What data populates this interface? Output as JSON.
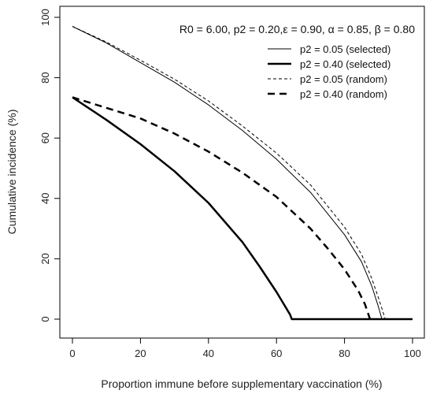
{
  "chart_data": {
    "type": "line",
    "annotation": "R0 = 6.00, p2 = 0.20,ε = 0.90, α = 0.85, β = 0.80",
    "xlabel": "Proportion immune before supplementary vaccination (%)",
    "ylabel": "Cumulative incidence (%)",
    "xlim": [
      0,
      100
    ],
    "ylim": [
      0,
      100
    ],
    "xticks": [
      0,
      20,
      40,
      60,
      80,
      100
    ],
    "yticks": [
      0,
      20,
      40,
      60,
      80,
      100
    ],
    "grid": false,
    "legend_position": "top-right",
    "series": [
      {
        "name": "p2 = 0.05 (selected)",
        "style": "solid-thin",
        "x": [
          0,
          10,
          20,
          30,
          40,
          50,
          60,
          70,
          80,
          85,
          88,
          90,
          91,
          100
        ],
        "y": [
          97,
          91.5,
          85,
          78.5,
          71,
          62.5,
          53,
          42,
          28,
          19,
          11,
          4,
          0,
          0
        ]
      },
      {
        "name": "p2 = 0.40 (selected)",
        "style": "solid-thick",
        "x": [
          0,
          10,
          20,
          30,
          40,
          50,
          55,
          60,
          64,
          64.5,
          100
        ],
        "y": [
          73.5,
          66,
          58,
          49,
          38.5,
          25.5,
          17.5,
          9,
          1.5,
          0,
          0
        ]
      },
      {
        "name": "p2 = 0.05 (random)",
        "style": "dashed-thin",
        "x": [
          0,
          10,
          20,
          30,
          40,
          50,
          60,
          70,
          80,
          85,
          88,
          90,
          92,
          100
        ],
        "y": [
          97,
          91.8,
          85.8,
          79.5,
          72.3,
          64,
          55,
          44.5,
          30.5,
          21.5,
          13.5,
          7,
          0,
          0
        ]
      },
      {
        "name": "p2 = 0.40 (random)",
        "style": "dashed-thick",
        "x": [
          0,
          10,
          20,
          30,
          40,
          50,
          60,
          70,
          75,
          80,
          84,
          86,
          87.5
        ],
        "y": [
          73.5,
          70,
          66.5,
          61.5,
          55.5,
          48.5,
          40.5,
          30,
          23.5,
          16.5,
          9.5,
          5,
          0
        ]
      }
    ]
  }
}
